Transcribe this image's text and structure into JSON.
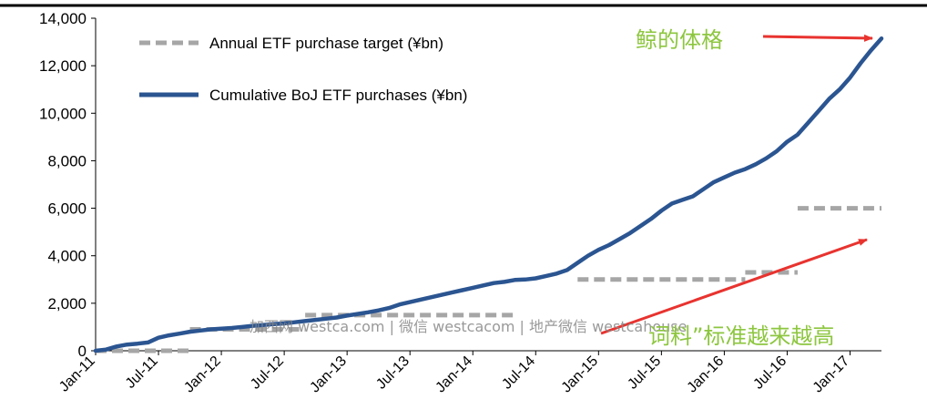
{
  "chart_data": {
    "type": "line",
    "ylim": [
      0,
      14000
    ],
    "yticks": [
      0,
      2000,
      4000,
      6000,
      8000,
      10000,
      12000,
      14000
    ],
    "ytick_labels": [
      "0",
      "2,000",
      "4,000",
      "6,000",
      "8,000",
      "10,000",
      "12,000",
      "14,000"
    ],
    "xtick_labels": [
      "Jan-11",
      "Jul-11",
      "Jan-12",
      "Jul-12",
      "Jan-13",
      "Jul-13",
      "Jan-14",
      "Jul-14",
      "Jan-15",
      "Jul-15",
      "Jan-16",
      "Jul-16",
      "Jan-17"
    ],
    "grid": false,
    "legend_position": "top-left",
    "series": [
      {
        "name": "Cumulative BoJ ETF purchases (¥bn)",
        "style": "solid",
        "color": "#2b5591",
        "points": [
          [
            0,
            0
          ],
          [
            1,
            50
          ],
          [
            2,
            180
          ],
          [
            3,
            260
          ],
          [
            4,
            300
          ],
          [
            5,
            350
          ],
          [
            6,
            550
          ],
          [
            7,
            650
          ],
          [
            8,
            720
          ],
          [
            9,
            800
          ],
          [
            10,
            850
          ],
          [
            11,
            900
          ],
          [
            12,
            930
          ],
          [
            13,
            960
          ],
          [
            14,
            1000
          ],
          [
            15,
            1050
          ],
          [
            16,
            1080
          ],
          [
            17,
            1120
          ],
          [
            18,
            1150
          ],
          [
            19,
            1200
          ],
          [
            20,
            1250
          ],
          [
            21,
            1300
          ],
          [
            22,
            1350
          ],
          [
            23,
            1400
          ],
          [
            24,
            1480
          ],
          [
            25,
            1550
          ],
          [
            26,
            1620
          ],
          [
            27,
            1700
          ],
          [
            28,
            1800
          ],
          [
            29,
            1950
          ],
          [
            30,
            2050
          ],
          [
            31,
            2150
          ],
          [
            32,
            2250
          ],
          [
            33,
            2350
          ],
          [
            34,
            2450
          ],
          [
            35,
            2550
          ],
          [
            36,
            2650
          ],
          [
            37,
            2750
          ],
          [
            38,
            2850
          ],
          [
            39,
            2900
          ],
          [
            40,
            2980
          ],
          [
            41,
            3000
          ],
          [
            42,
            3050
          ],
          [
            43,
            3150
          ],
          [
            44,
            3250
          ],
          [
            45,
            3400
          ],
          [
            46,
            3700
          ],
          [
            47,
            4000
          ],
          [
            48,
            4250
          ],
          [
            49,
            4450
          ],
          [
            50,
            4700
          ],
          [
            51,
            4950
          ],
          [
            52,
            5250
          ],
          [
            53,
            5550
          ],
          [
            54,
            5900
          ],
          [
            55,
            6200
          ],
          [
            56,
            6350
          ],
          [
            57,
            6500
          ],
          [
            58,
            6800
          ],
          [
            59,
            7100
          ],
          [
            60,
            7300
          ],
          [
            61,
            7500
          ],
          [
            62,
            7650
          ],
          [
            63,
            7850
          ],
          [
            64,
            8100
          ],
          [
            65,
            8400
          ],
          [
            66,
            8800
          ],
          [
            67,
            9100
          ],
          [
            68,
            9600
          ],
          [
            69,
            10100
          ],
          [
            70,
            10600
          ],
          [
            71,
            11000
          ],
          [
            72,
            11500
          ],
          [
            73,
            12100
          ],
          [
            74,
            12650
          ],
          [
            75,
            13150
          ]
        ]
      },
      {
        "name": "Annual ETF purchase target (¥bn)",
        "style": "dashed",
        "color": "#a6a6a6",
        "segments": [
          {
            "x": [
              0,
              9
            ],
            "y": 0
          },
          {
            "x": [
              9,
              20
            ],
            "y": 900
          },
          {
            "x": [
              20,
              40
            ],
            "y": 1500
          },
          {
            "x": [
              46,
              62
            ],
            "y": 3000
          },
          {
            "x": [
              62,
              67
            ],
            "y": 3300
          },
          {
            "x": [
              67,
              75
            ],
            "y": 6000
          }
        ]
      }
    ],
    "annotations": [
      {
        "text": "鲸的体格",
        "color": "#8dc63f"
      },
      {
        "text": "词料”标准越来越高",
        "color": "#8dc63f"
      }
    ],
    "watermark": "加西网 westca.com | 微信 westcacom | 地产微信 westcahouse"
  }
}
